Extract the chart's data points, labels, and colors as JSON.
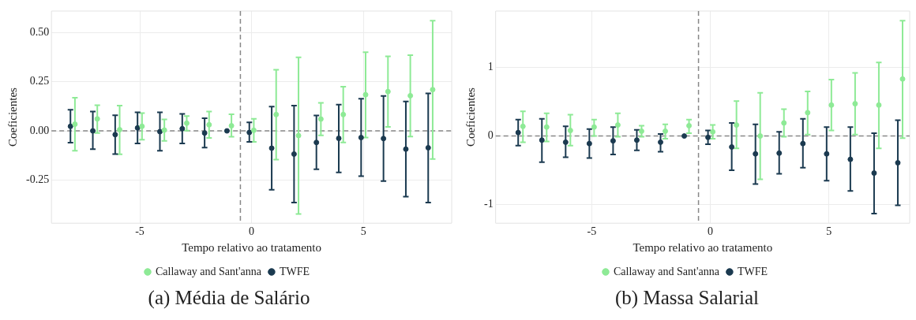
{
  "chart_data": [
    {
      "type": "scatter",
      "title": "(a) Média de Salário",
      "xlabel": "Tempo relativo ao tratamento",
      "ylabel": "Coeficientes",
      "xlim": [
        -8.95,
        8.95
      ],
      "xticks": [
        -5,
        0,
        5
      ],
      "ylim": [
        -0.47,
        0.61
      ],
      "yticks": [
        {
          "value": -0.25,
          "label": "-0.25"
        },
        {
          "value": 0,
          "label": "0.00"
        },
        {
          "value": 0.25,
          "label": "0.25"
        },
        {
          "value": 0.5,
          "label": "0.50"
        }
      ],
      "grid": true,
      "legend": "bottom",
      "marker": "circle",
      "ref_lines": [
        {
          "axis": "y",
          "value": 0,
          "color": "#888888",
          "line_style": "dashed"
        },
        {
          "axis": "x",
          "value": -0.5,
          "color": "#888888",
          "line_style": "dashed"
        }
      ],
      "series": [
        {
          "name": "Callaway and Sant'anna",
          "color": "#8eea96",
          "x": [
            -7.9,
            -6.9,
            -5.9,
            -4.9,
            -3.9,
            -2.9,
            -1.9,
            -0.9,
            0.1,
            1.1,
            2.1,
            3.1,
            4.1,
            5.1,
            6.1,
            7.1,
            8.1
          ],
          "values": [
            0.034,
            0.061,
            0.006,
            0.023,
            0.004,
            0.039,
            0.031,
            0.026,
            0.003,
            0.083,
            -0.024,
            0.06,
            0.083,
            0.184,
            0.2,
            0.179,
            0.21
          ],
          "errors": [
            [
              -0.101,
              0.169
            ],
            [
              -0.011,
              0.131
            ],
            [
              -0.119,
              0.129
            ],
            [
              -0.045,
              0.09
            ],
            [
              -0.051,
              0.058
            ],
            [
              0.001,
              0.075
            ],
            [
              -0.036,
              0.098
            ],
            [
              -0.03,
              0.084
            ],
            [
              -0.056,
              0.061
            ],
            [
              -0.146,
              0.311
            ],
            [
              -0.423,
              0.374
            ],
            [
              -0.023,
              0.143
            ],
            [
              -0.059,
              0.225
            ],
            [
              -0.034,
              0.4
            ],
            [
              0.02,
              0.379
            ],
            [
              -0.029,
              0.385
            ],
            [
              -0.143,
              0.561
            ]
          ]
        },
        {
          "name": "TWFE",
          "color": "#1b3a50",
          "x": [
            -8.1,
            -7.1,
            -6.1,
            -5.1,
            -4.1,
            -3.1,
            -2.1,
            -1.1,
            -0.1,
            0.9,
            1.9,
            2.9,
            3.9,
            4.9,
            5.9,
            6.9,
            7.9
          ],
          "values": [
            0.023,
            0,
            -0.019,
            0.015,
            -0.004,
            0.011,
            -0.011,
            0,
            -0.008,
            -0.088,
            -0.118,
            -0.059,
            -0.038,
            -0.034,
            -0.039,
            -0.093,
            -0.086
          ],
          "errors": [
            [
              -0.06,
              0.108
            ],
            [
              -0.093,
              0.098
            ],
            [
              -0.118,
              0.079
            ],
            [
              -0.064,
              0.094
            ],
            [
              -0.101,
              0.094
            ],
            [
              -0.064,
              0.086
            ],
            [
              -0.085,
              0.064
            ],
            null,
            [
              -0.056,
              0.043
            ],
            [
              -0.3,
              0.124
            ],
            [
              -0.365,
              0.129
            ],
            [
              -0.195,
              0.078
            ],
            [
              -0.211,
              0.134
            ],
            [
              -0.23,
              0.164
            ],
            [
              -0.256,
              0.178
            ],
            [
              -0.335,
              0.15
            ],
            [
              -0.365,
              0.191
            ]
          ]
        }
      ]
    },
    {
      "type": "scatter",
      "title": "(b) Massa Salarial",
      "xlabel": "Tempo relativo ao tratamento",
      "ylabel": "Coeficientes",
      "xlim": [
        -9.05,
        8.4
      ],
      "xticks": [
        -5,
        0,
        5
      ],
      "ylim": [
        -1.27,
        1.82
      ],
      "yticks": [
        -1,
        0,
        1
      ],
      "grid": true,
      "legend": "bottom",
      "marker": "circle",
      "ref_lines": [
        {
          "axis": "y",
          "value": 0,
          "color": "#888888",
          "line_style": "dashed"
        },
        {
          "axis": "x",
          "value": -0.5,
          "color": "#888888",
          "line_style": "dashed"
        }
      ],
      "series": [
        {
          "name": "Callaway and Sant'anna",
          "color": "#8eea96",
          "x": [
            -7.9,
            -6.9,
            -5.9,
            -4.9,
            -3.9,
            -2.9,
            -1.9,
            -0.9,
            0.1,
            1.1,
            2.1,
            3.1,
            4.1,
            5.1,
            6.1,
            7.1,
            8.1
          ],
          "values": [
            0.14,
            0.13,
            0.08,
            0.13,
            0.16,
            0.07,
            0.07,
            0.15,
            0.06,
            0.16,
            0,
            0.19,
            0.34,
            0.45,
            0.47,
            0.45,
            0.83
          ],
          "errors": [
            [
              -0.09,
              0.36
            ],
            [
              -0.08,
              0.33
            ],
            [
              -0.14,
              0.31
            ],
            [
              0,
              0.24
            ],
            [
              -0.01,
              0.33
            ],
            [
              -0.01,
              0.15
            ],
            [
              -0.04,
              0.17
            ],
            [
              0.04,
              0.24
            ],
            [
              -0.04,
              0.16
            ],
            [
              -0.18,
              0.51
            ],
            [
              -0.63,
              0.63
            ],
            [
              -0.01,
              0.39
            ],
            [
              0.02,
              0.65
            ],
            [
              0.08,
              0.82
            ],
            [
              0.02,
              0.92
            ],
            [
              -0.18,
              1.07
            ],
            [
              -0.03,
              1.68
            ]
          ]
        },
        {
          "name": "TWFE",
          "color": "#1b3a50",
          "x": [
            -8.1,
            -7.1,
            -6.1,
            -5.1,
            -4.1,
            -3.1,
            -2.1,
            -1.1,
            -0.1,
            0.9,
            1.9,
            2.9,
            3.9,
            4.9,
            5.9,
            6.9,
            7.9
          ],
          "values": [
            0.05,
            -0.06,
            -0.09,
            -0.11,
            -0.07,
            -0.06,
            -0.09,
            0,
            -0.02,
            -0.16,
            -0.26,
            -0.25,
            -0.11,
            -0.26,
            -0.34,
            -0.54,
            -0.39
          ],
          "errors": [
            [
              -0.14,
              0.24
            ],
            [
              -0.38,
              0.25
            ],
            [
              -0.31,
              0.14
            ],
            [
              -0.32,
              0.1
            ],
            [
              -0.27,
              0.13
            ],
            [
              -0.21,
              0.09
            ],
            [
              -0.23,
              0.03
            ],
            null,
            [
              -0.12,
              0.08
            ],
            [
              -0.5,
              0.19
            ],
            [
              -0.7,
              0.17
            ],
            [
              -0.55,
              0.06
            ],
            [
              -0.46,
              0.25
            ],
            [
              -0.65,
              0.13
            ],
            [
              -0.8,
              0.13
            ],
            [
              -1.13,
              0.04
            ],
            [
              -1.01,
              0.23
            ]
          ]
        }
      ]
    }
  ]
}
